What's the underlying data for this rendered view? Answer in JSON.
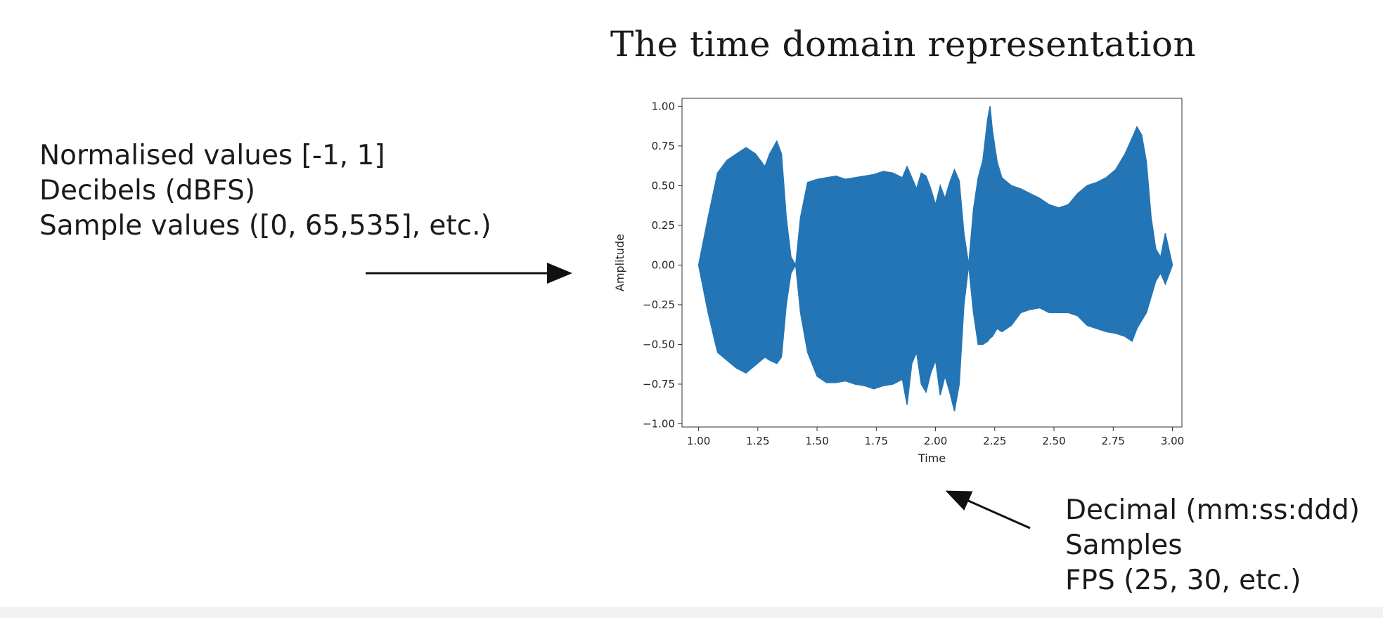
{
  "slide": {
    "title": "The time domain representation",
    "amplitude_formats": [
      "Normalised values [-1, 1]",
      "Decibels (dBFS)",
      "Sample values ([0, 65,535], etc.)"
    ],
    "time_formats": [
      "Decimal (mm:ss:ddd)",
      "Samples",
      "FPS (25, 30, etc.)"
    ]
  },
  "chart_data": {
    "type": "area",
    "title": "",
    "xlabel": "Time",
    "ylabel": "Amplitude",
    "xlim": [
      0.93,
      3.04
    ],
    "ylim": [
      -1.02,
      1.05
    ],
    "xticks": [
      "1.00",
      "1.25",
      "1.50",
      "1.75",
      "2.00",
      "2.25",
      "2.50",
      "2.75",
      "3.00"
    ],
    "yticks": [
      "1.00",
      "0.75",
      "0.50",
      "0.25",
      "0.00",
      "−0.25",
      "−0.50",
      "−0.75",
      "−1.00"
    ],
    "grid": false,
    "series": [
      {
        "color": "#2475b5",
        "envelope_x": [
          1.0,
          1.04,
          1.08,
          1.12,
          1.16,
          1.2,
          1.24,
          1.28,
          1.3,
          1.33,
          1.35,
          1.37,
          1.39,
          1.41,
          1.43,
          1.46,
          1.5,
          1.54,
          1.58,
          1.62,
          1.66,
          1.7,
          1.74,
          1.78,
          1.82,
          1.86,
          1.88,
          1.9,
          1.92,
          1.94,
          1.96,
          1.98,
          2.0,
          2.02,
          2.04,
          2.06,
          2.08,
          2.1,
          2.12,
          2.14,
          2.16,
          2.18,
          2.2,
          2.22,
          2.23,
          2.24,
          2.26,
          2.28,
          2.32,
          2.36,
          2.4,
          2.44,
          2.48,
          2.52,
          2.56,
          2.6,
          2.64,
          2.68,
          2.72,
          2.76,
          2.8,
          2.83,
          2.85,
          2.87,
          2.89,
          2.91,
          2.93,
          2.95,
          2.97,
          3.0
        ],
        "upper": [
          0.0,
          0.3,
          0.58,
          0.66,
          0.7,
          0.74,
          0.7,
          0.62,
          0.7,
          0.78,
          0.7,
          0.3,
          0.05,
          0.0,
          0.3,
          0.52,
          0.54,
          0.55,
          0.56,
          0.54,
          0.55,
          0.56,
          0.57,
          0.59,
          0.58,
          0.55,
          0.62,
          0.55,
          0.48,
          0.58,
          0.56,
          0.48,
          0.38,
          0.5,
          0.42,
          0.52,
          0.6,
          0.53,
          0.2,
          0.0,
          0.35,
          0.55,
          0.66,
          0.92,
          1.0,
          0.85,
          0.65,
          0.55,
          0.5,
          0.48,
          0.45,
          0.42,
          0.38,
          0.36,
          0.38,
          0.45,
          0.5,
          0.52,
          0.55,
          0.6,
          0.7,
          0.8,
          0.87,
          0.82,
          0.65,
          0.3,
          0.1,
          0.05,
          0.2,
          0.0
        ],
        "lower": [
          0.0,
          -0.3,
          -0.55,
          -0.6,
          -0.65,
          -0.68,
          -0.63,
          -0.58,
          -0.6,
          -0.62,
          -0.58,
          -0.25,
          -0.05,
          0.0,
          -0.3,
          -0.55,
          -0.7,
          -0.74,
          -0.74,
          -0.73,
          -0.75,
          -0.76,
          -0.78,
          -0.76,
          -0.75,
          -0.72,
          -0.88,
          -0.62,
          -0.55,
          -0.75,
          -0.8,
          -0.68,
          -0.6,
          -0.82,
          -0.7,
          -0.8,
          -0.92,
          -0.75,
          -0.25,
          0.0,
          -0.3,
          -0.5,
          -0.5,
          -0.48,
          -0.46,
          -0.45,
          -0.4,
          -0.42,
          -0.38,
          -0.3,
          -0.28,
          -0.27,
          -0.3,
          -0.3,
          -0.3,
          -0.32,
          -0.38,
          -0.4,
          -0.42,
          -0.43,
          -0.45,
          -0.48,
          -0.4,
          -0.35,
          -0.3,
          -0.2,
          -0.1,
          -0.05,
          -0.12,
          0.0
        ]
      }
    ]
  }
}
